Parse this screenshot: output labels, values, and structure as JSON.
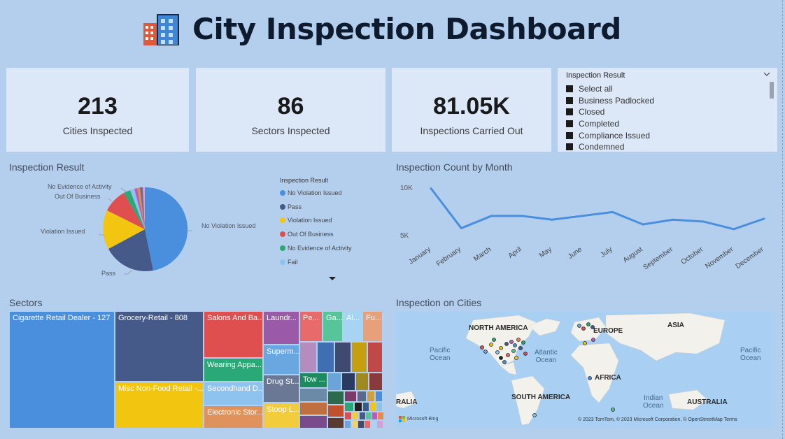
{
  "header": {
    "title": "City Inspection Dashboard"
  },
  "kpis": [
    {
      "value": "213",
      "label": "Cities Inspected"
    },
    {
      "value": "86",
      "label": "Sectors Inspected"
    },
    {
      "value": "81.05K",
      "label": "Inspections Carried Out"
    }
  ],
  "slicer": {
    "title": "Inspection Result",
    "items": [
      "Select all",
      "Business Padlocked",
      "Closed",
      "Completed",
      "Compliance Issued",
      "Condemned"
    ]
  },
  "pie": {
    "title": "Inspection Result",
    "legend_title": "Inspection Result",
    "legend": [
      {
        "name": "No Violation Issued",
        "color": "#4a8fde"
      },
      {
        "name": "Pass",
        "color": "#465a8a"
      },
      {
        "name": "Violation Issued",
        "color": "#f2c511"
      },
      {
        "name": "Out Of Business",
        "color": "#e04f4f"
      },
      {
        "name": "No Evidence of Activity",
        "color": "#2ba877"
      },
      {
        "name": "Fail",
        "color": "#8ec3ef"
      }
    ],
    "labels": [
      "No Evidence of Activity",
      "Out Of Business",
      "Violation Issued",
      "Pass",
      "No Violation Issued"
    ]
  },
  "chart_data": {
    "type": "line",
    "title": "Inspection Count by Month",
    "categories": [
      "January",
      "February",
      "March",
      "April",
      "May",
      "June",
      "July",
      "August",
      "September",
      "October",
      "November",
      "December"
    ],
    "yticks": [
      "10K",
      "5K"
    ],
    "series": [
      {
        "values": [
          9900,
          5700,
          7000,
          7000,
          6600,
          7000,
          7400,
          6100,
          6600,
          6400,
          5600,
          6700
        ]
      }
    ],
    "ylim": [
      4700,
      10600
    ]
  },
  "treemap": {
    "title": "Sectors",
    "tiles": [
      "Cigarette Retail Dealer - 127",
      "Grocery-Retail - 808",
      "Misc Non-Food Retail -...",
      "Salons And Ba...",
      "Wearing Appa...",
      "Secondhand D...",
      "Electronic Stor...",
      "Laundr...",
      "Superm...",
      "Drug St...",
      "Stoop L...",
      "Pe...",
      "Ga...",
      "Al...",
      "Fu...",
      "Tow ..."
    ]
  },
  "map": {
    "title": "Inspection on Cities",
    "continents": [
      "NORTH AMERICA",
      "EUROPE",
      "ASIA",
      "AFRICA",
      "SOUTH AMERICA",
      "AUSTRALIA",
      "RALIA"
    ],
    "oceans": [
      "Pacific\nOcean",
      "Atlantic\nOcean",
      "Indian\nOcean",
      "Pacific\nOcean"
    ],
    "attribution": "© 2023 TomTom, © 2023 Microsoft Corporation, © OpenStreetMap  Terms",
    "logo": "Microsoft Bing"
  }
}
